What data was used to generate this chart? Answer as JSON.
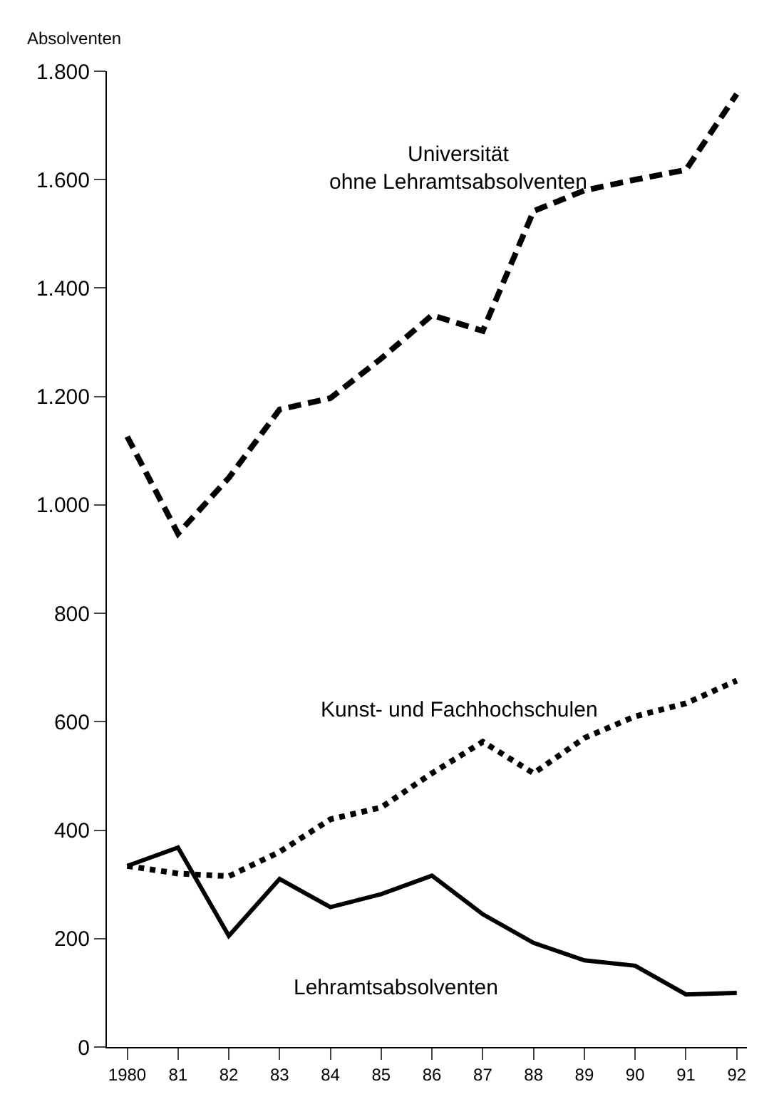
{
  "chart_data": {
    "type": "line",
    "ylabel": "Absolventen",
    "x": [
      1980,
      1981,
      1982,
      1983,
      1984,
      1985,
      1986,
      1987,
      1988,
      1989,
      1990,
      1991,
      1992
    ],
    "series": [
      {
        "name": "Universität\nohne Lehramtsabsolventen",
        "color": "#000000",
        "line_style": "dashed",
        "values": [
          1126,
          947,
          1050,
          1176,
          1197,
          1270,
          1350,
          1321,
          1542,
          1580,
          1600,
          1618,
          1758
        ]
      },
      {
        "name": "Kunst- und Fachhochschulen",
        "color": "#000000",
        "line_style": "dotted",
        "values": [
          334,
          320,
          315,
          360,
          420,
          442,
          505,
          563,
          505,
          570,
          610,
          634,
          676
        ]
      },
      {
        "name": "Lehramtsabsolventen",
        "color": "#000000",
        "line_style": "solid",
        "values": [
          334,
          368,
          205,
          310,
          258,
          282,
          316,
          245,
          192,
          160,
          150,
          97,
          100
        ]
      }
    ],
    "xlim": [
      1979.6,
      1992.2
    ],
    "xticks": [
      {
        "value": 1980,
        "label": "1980"
      },
      {
        "value": 1981,
        "label": "81"
      },
      {
        "value": 1982,
        "label": "82"
      },
      {
        "value": 1983,
        "label": "83"
      },
      {
        "value": 1984,
        "label": "84"
      },
      {
        "value": 1985,
        "label": "85"
      },
      {
        "value": 1986,
        "label": "86"
      },
      {
        "value": 1987,
        "label": "87"
      },
      {
        "value": 1988,
        "label": "88"
      },
      {
        "value": 1989,
        "label": "89"
      },
      {
        "value": 1990,
        "label": "90"
      },
      {
        "value": 1991,
        "label": "91"
      },
      {
        "value": 1992,
        "label": "92"
      }
    ],
    "ylim": [
      0,
      1800
    ],
    "yticks": [
      0,
      200,
      400,
      600,
      800,
      {
        "value": 1000,
        "label": "1.000"
      },
      {
        "value": 1200,
        "label": "1.200"
      },
      {
        "value": 1400,
        "label": "1.400"
      },
      {
        "value": 1600,
        "label": "1.600"
      },
      {
        "value": 1800,
        "label": "1.800"
      }
    ],
    "legend": false,
    "marker": "none"
  }
}
